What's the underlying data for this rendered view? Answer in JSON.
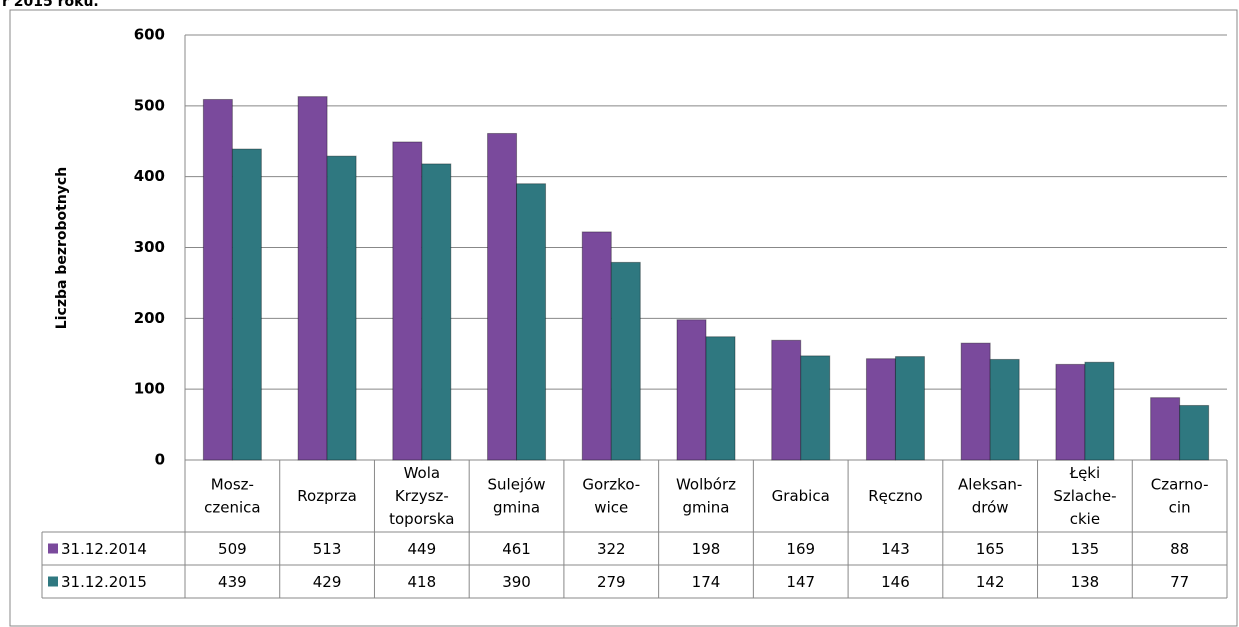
{
  "chart_data": {
    "type": "bar",
    "title": "r 2015 roku.",
    "ylabel": "Liczba bezrobotnych",
    "categories": [
      [
        "Mosz-",
        "czenica"
      ],
      [
        "Rozprza"
      ],
      [
        "Wola",
        "Krzysz-",
        "toporska"
      ],
      [
        "Sulejów",
        "gmina"
      ],
      [
        "Gorzko-",
        "wice"
      ],
      [
        "Wolbórz",
        "gmina"
      ],
      [
        "Grabica"
      ],
      [
        "Ręczno"
      ],
      [
        "Aleksan-",
        "drów"
      ],
      [
        "Łęki",
        "Szlache-",
        "ckie"
      ],
      [
        "Czarno-",
        "cin"
      ]
    ],
    "series": [
      {
        "name": "31.12.2014",
        "color": "#7a4a9c",
        "values": [
          509,
          513,
          449,
          461,
          322,
          198,
          169,
          143,
          165,
          135,
          88
        ]
      },
      {
        "name": "31.12.2015",
        "color": "#2f7880",
        "values": [
          439,
          429,
          418,
          390,
          279,
          174,
          147,
          146,
          142,
          138,
          77
        ]
      }
    ],
    "ylim": [
      0,
      600
    ],
    "yticks": [
      0,
      100,
      200,
      300,
      400,
      500,
      600
    ],
    "grid": true
  }
}
